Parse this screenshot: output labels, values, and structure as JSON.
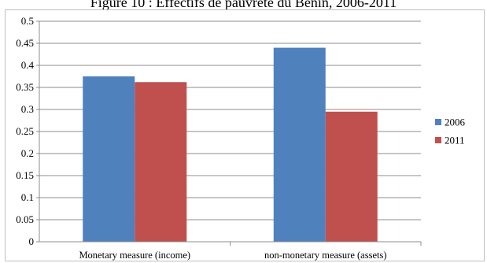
{
  "chart_data": {
    "type": "bar",
    "title": "Figure 10 : Effectifs de pauvreté du Bénin, 2006-2011",
    "categories": [
      "Monetary measure (income)",
      "non-monetary measure (assets)"
    ],
    "series": [
      {
        "name": "2006",
        "values": [
          0.375,
          0.44
        ],
        "color": "#4f81bd"
      },
      {
        "name": "2011",
        "values": [
          0.362,
          0.295
        ],
        "color": "#c0504d"
      }
    ],
    "yticks": [
      "0",
      "0.05",
      "0.1",
      "0.15",
      "0.2",
      "0.25",
      "0.3",
      "0.35",
      "0.4",
      "0.45",
      "0.5"
    ],
    "ylim": [
      0,
      0.5
    ],
    "xlabel": "",
    "ylabel": "",
    "grid": true,
    "legend": "right"
  }
}
